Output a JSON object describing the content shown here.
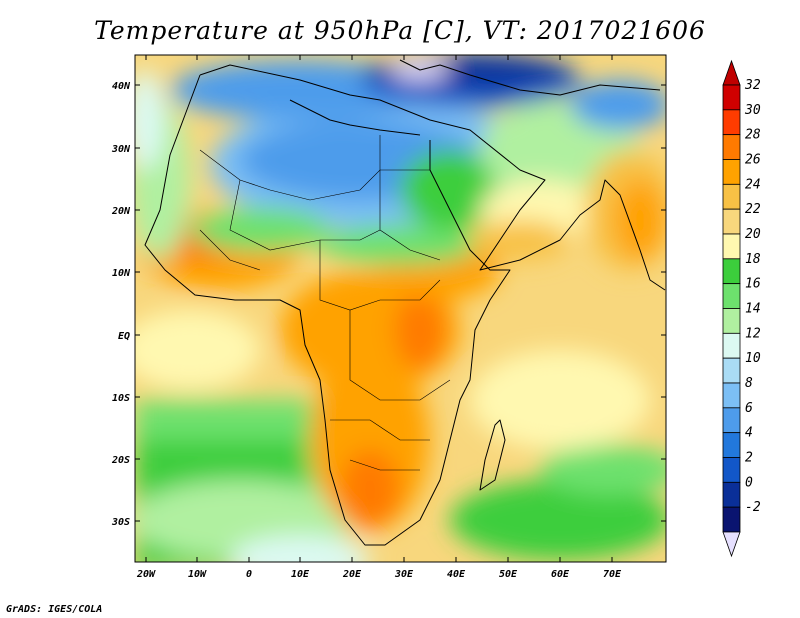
{
  "title": "Temperature at 950hPa [C], VT: 2017021606",
  "footer": "GrADS: IGES/COLA",
  "axes": {
    "lat_labels": [
      "40N",
      "30N",
      "20N",
      "10N",
      "EQ",
      "10S",
      "20S",
      "30S"
    ],
    "lon_labels": [
      "20W",
      "10W",
      "0",
      "10E",
      "20E",
      "30E",
      "40E",
      "50E",
      "60E",
      "70E"
    ]
  },
  "colorbar": {
    "labels": [
      "32",
      "30",
      "28",
      "26",
      "24",
      "22",
      "20",
      "18",
      "16",
      "14",
      "12",
      "10",
      "8",
      "6",
      "4",
      "2",
      "0",
      "-2"
    ],
    "colors": [
      "#d00000",
      "#ff3c00",
      "#ff7a00",
      "#ffa200",
      "#f8c145",
      "#f8d77d",
      "#fff8b0",
      "#3cce3c",
      "#6de16d",
      "#b0f0a0",
      "#dcf9f2",
      "#aadcf5",
      "#7cbff5",
      "#4e9ceb",
      "#2278dc",
      "#1257c8",
      "#0a2f98",
      "#0a1470"
    ],
    "top_arrow_color": "#c00000",
    "bottom_arrow_color": "#e6e0ff"
  }
}
